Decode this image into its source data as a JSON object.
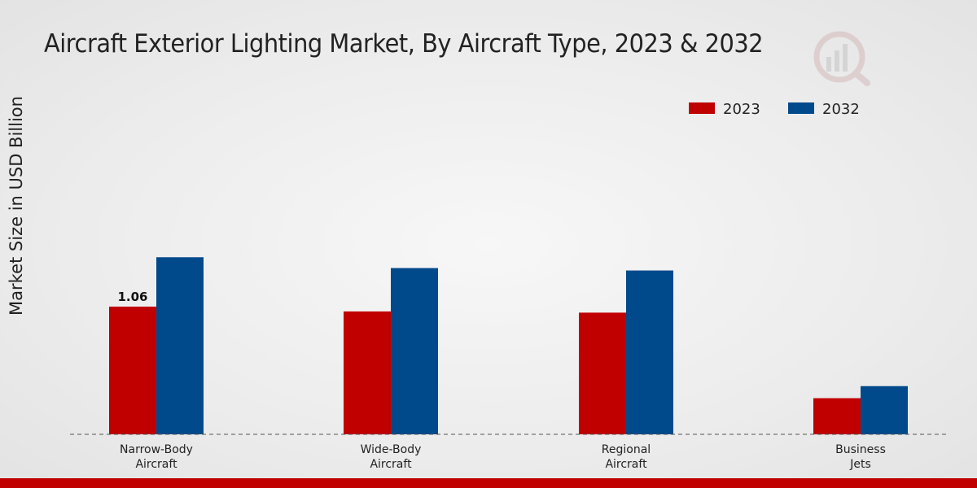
{
  "chart_data": {
    "type": "bar",
    "title": "Aircraft Exterior Lighting Market, By Aircraft Type, 2023 & 2032",
    "xlabel": "",
    "ylabel": "Market Size in USD Billion",
    "categories": [
      [
        "Narrow-Body",
        "Aircraft"
      ],
      [
        "Wide-Body",
        "Aircraft"
      ],
      [
        "Regional",
        "Aircraft"
      ],
      [
        "Business",
        "Jets"
      ]
    ],
    "series": [
      {
        "name": "2023",
        "color": "#c00000",
        "values": [
          1.06,
          1.02,
          1.01,
          0.3
        ]
      },
      {
        "name": "2032",
        "color": "#004a8c",
        "values": [
          1.47,
          1.38,
          1.36,
          0.4
        ]
      }
    ],
    "data_labels": [
      {
        "series": 0,
        "index": 0,
        "text": "1.06"
      }
    ],
    "ylim": [
      0,
      3.2
    ],
    "legend_position": "top-right",
    "grid": false
  }
}
